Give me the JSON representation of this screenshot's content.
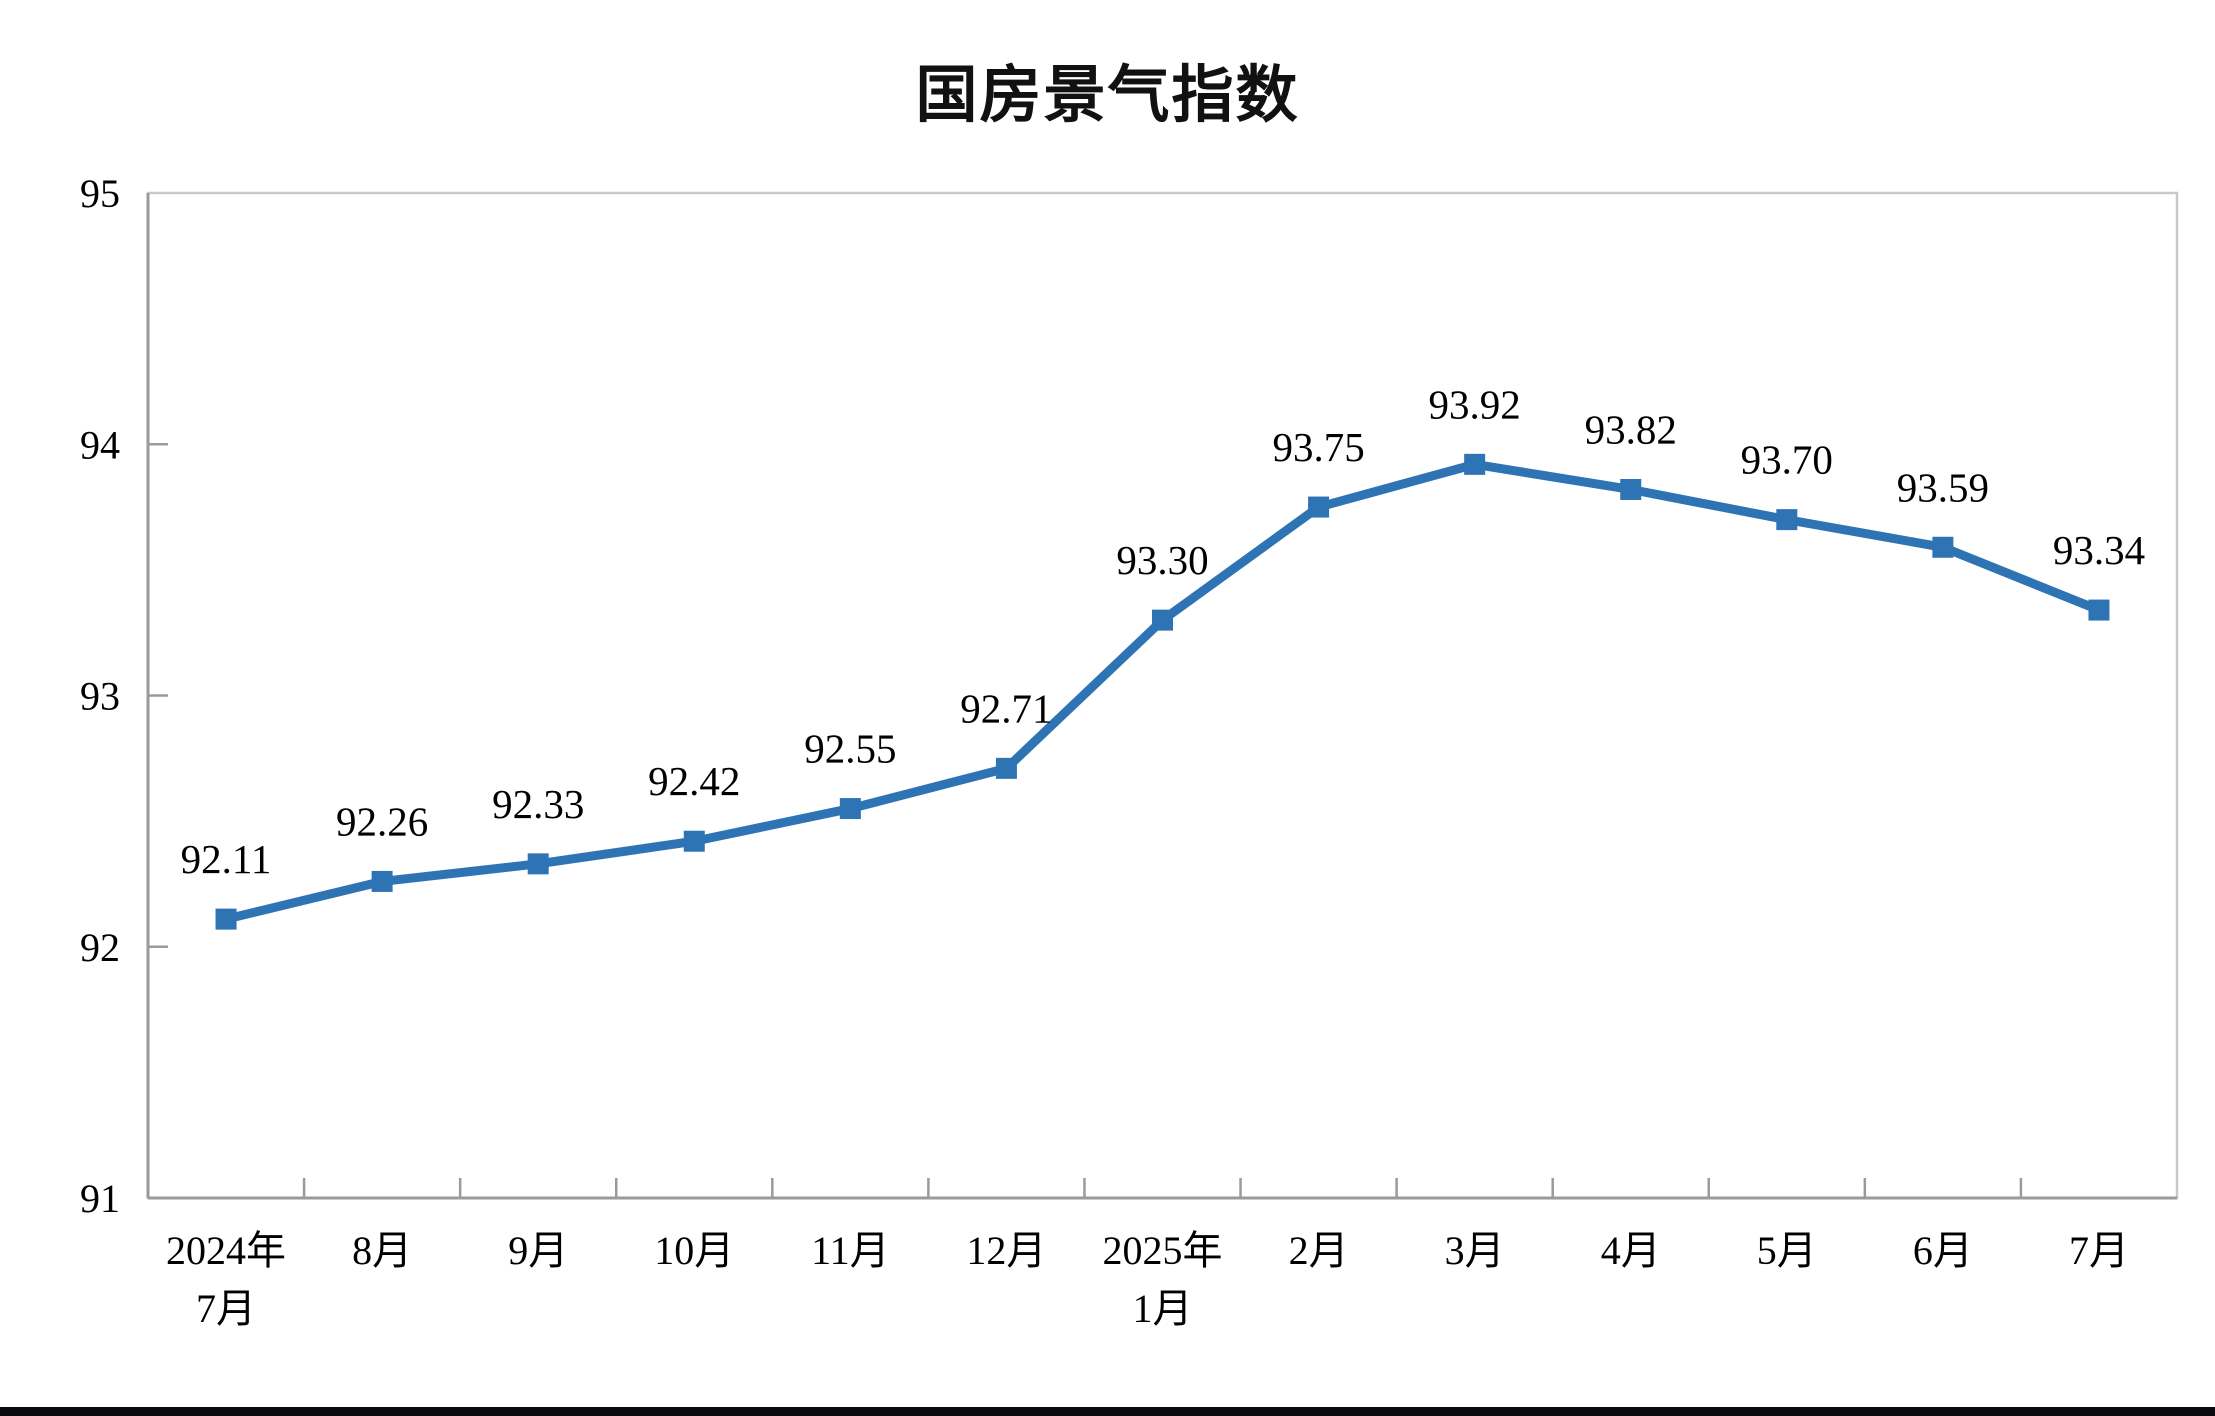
{
  "title": "国房景气指数",
  "colors": {
    "line": "#2E74B5",
    "marker": "#2E74B5",
    "axis": "#9A9A9A",
    "plot_border": "#C9C9C9",
    "text": "#000000",
    "background": "#FFFFFF",
    "bottom_bar": "#0A0A0C"
  },
  "chart_data": {
    "type": "line",
    "title": "国房景气指数",
    "categories": [
      "2024年\n7月",
      "8月",
      "9月",
      "10月",
      "11月",
      "12月",
      "2025年\n1月",
      "2月",
      "3月",
      "4月",
      "5月",
      "6月",
      "7月"
    ],
    "values": [
      92.11,
      92.26,
      92.33,
      92.42,
      92.55,
      92.71,
      93.3,
      93.75,
      93.92,
      93.82,
      93.7,
      93.59,
      93.34
    ],
    "data_labels": [
      "92.11",
      "92.26",
      "92.33",
      "92.42",
      "92.55",
      "92.71",
      "93.30",
      "93.75",
      "93.92",
      "93.82",
      "93.70",
      "93.59",
      "93.34"
    ],
    "xlabel": "",
    "ylabel": "",
    "ylim": [
      91,
      95
    ],
    "y_ticks": [
      91,
      92,
      93,
      94,
      95
    ],
    "y_tick_labels": [
      "91",
      "92",
      "93",
      "94",
      "95"
    ],
    "grid": false,
    "legend": "none",
    "marker_shape": "square",
    "label_position": "above"
  }
}
